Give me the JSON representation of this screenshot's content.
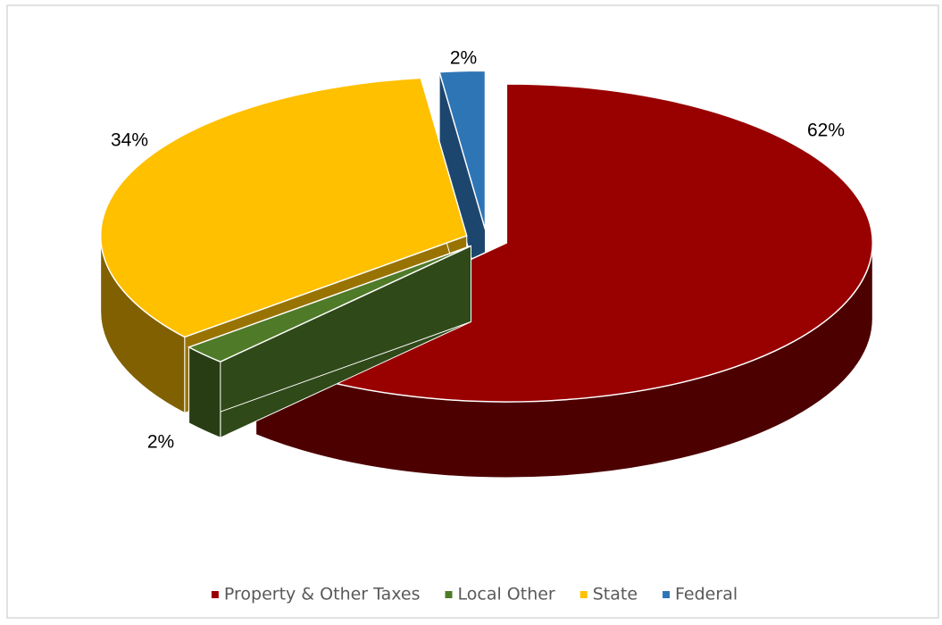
{
  "chart_data": {
    "type": "pie3d",
    "categories": [
      "Property & Other Taxes",
      "Local Other",
      "State",
      "Federal"
    ],
    "values": [
      62,
      2,
      34,
      2
    ],
    "value_labels": [
      "62%",
      "2%",
      "34%",
      "2%"
    ],
    "colors": [
      "#990000",
      "#4f7a28",
      "#ffc000",
      "#2e75b6"
    ],
    "legend": "bottom"
  }
}
